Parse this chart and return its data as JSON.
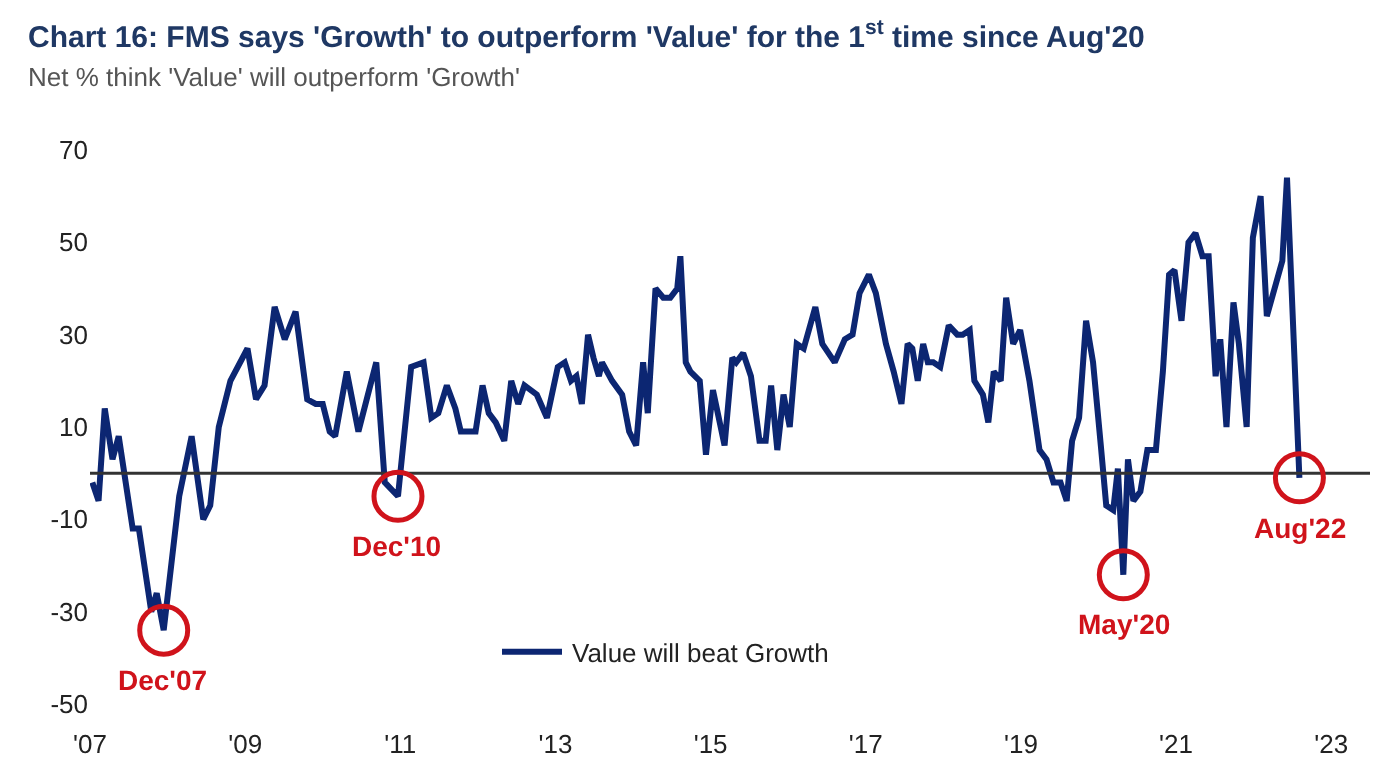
{
  "chart_data": {
    "type": "line",
    "title": "Chart 16: FMS says 'Growth' to outperform 'Value' for the 1$^{st}$ time since Aug'20",
    "subtitle": "Net % think 'Value' will outperform 'Growth'",
    "series": [
      {
        "name": "Value will beat Growth",
        "color": "#0c2672",
        "x": [
          2007.03,
          2007.11,
          2007.19,
          2007.29,
          2007.37,
          2007.55,
          2007.63,
          2007.79,
          2007.86,
          2007.95,
          2008.15,
          2008.31,
          2008.46,
          2008.55,
          2008.66,
          2008.81,
          2009.03,
          2009.14,
          2009.25,
          2009.38,
          2009.51,
          2009.65,
          2009.8,
          2009.91,
          2010.0,
          2010.09,
          2010.16,
          2010.31,
          2010.46,
          2010.69,
          2010.8,
          2010.97,
          2011.14,
          2011.3,
          2011.4,
          2011.49,
          2011.6,
          2011.71,
          2011.78,
          2011.97,
          2012.06,
          2012.14,
          2012.23,
          2012.34,
          2012.43,
          2012.52,
          2012.6,
          2012.76,
          2012.89,
          2013.03,
          2013.12,
          2013.2,
          2013.27,
          2013.34,
          2013.42,
          2013.49,
          2013.56,
          2013.6,
          2013.73,
          2013.86,
          2013.95,
          2014.04,
          2014.13,
          2014.19,
          2014.29,
          2014.39,
          2014.48,
          2014.57,
          2014.61,
          2014.68,
          2014.74,
          2014.86,
          2014.94,
          2015.03,
          2015.18,
          2015.28,
          2015.33,
          2015.42,
          2015.52,
          2015.63,
          2015.71,
          2015.78,
          2015.86,
          2015.94,
          2016.02,
          2016.11,
          2016.2,
          2016.35,
          2016.44,
          2016.6,
          2016.73,
          2016.83,
          2016.92,
          2017.04,
          2017.13,
          2017.26,
          2017.36,
          2017.46,
          2017.54,
          2017.6,
          2017.67,
          2017.74,
          2017.8,
          2017.87,
          2017.96,
          2018.07,
          2018.18,
          2018.25,
          2018.34,
          2018.4,
          2018.51,
          2018.58,
          2018.65,
          2018.74,
          2018.81,
          2018.9,
          2018.99,
          2019.11,
          2019.24,
          2019.33,
          2019.42,
          2019.51,
          2019.59,
          2019.66,
          2019.75,
          2019.84,
          2019.93,
          2020.03,
          2020.1,
          2020.19,
          2020.25,
          2020.32,
          2020.38,
          2020.45,
          2020.54,
          2020.63,
          2020.74,
          2020.83,
          2020.91,
          2020.98,
          2021.07,
          2021.16,
          2021.25,
          2021.34,
          2021.42,
          2021.51,
          2021.57,
          2021.65,
          2021.74,
          2021.81,
          2021.91,
          2021.99,
          2022.09,
          2022.17,
          2022.37,
          2022.43,
          2022.59
        ],
        "values": [
          -2,
          -6,
          14,
          3,
          8,
          -12,
          -12,
          -30,
          -26,
          -34,
          -5,
          8,
          -10,
          -7,
          10,
          20,
          27,
          16,
          19,
          36,
          29,
          35,
          16,
          15,
          15,
          9,
          8,
          22,
          9,
          24,
          -2,
          -5,
          23,
          24,
          12,
          13,
          19,
          14,
          9,
          9,
          19,
          13,
          11,
          7,
          20,
          15,
          19,
          17,
          12,
          23,
          24,
          20,
          21,
          15,
          30,
          25,
          21,
          24,
          20,
          17,
          9,
          6,
          24,
          13,
          40,
          38,
          38,
          40,
          47,
          24,
          22,
          20,
          4,
          18,
          6,
          25,
          24,
          26,
          21,
          7,
          7,
          19,
          5,
          17,
          10,
          28,
          27,
          36,
          28,
          24,
          29,
          30,
          39,
          43,
          39,
          28,
          22,
          15,
          28,
          27,
          20,
          28,
          24,
          24,
          23,
          32,
          30,
          30,
          31,
          20,
          17,
          11,
          22,
          20,
          38,
          28,
          31,
          20,
          5,
          3,
          -2,
          -2,
          -6,
          7,
          12,
          33,
          24,
          6,
          -7,
          -8,
          1,
          -22,
          3,
          -6,
          -4,
          5,
          5,
          22,
          43,
          44,
          33,
          50,
          52,
          47,
          47,
          21,
          29,
          10,
          37,
          28,
          10,
          51,
          60,
          34,
          46,
          64,
          -1
        ]
      }
    ],
    "xlim": [
      2007,
      2023.5
    ],
    "xticks": [
      {
        "value": 2007,
        "label": "'07"
      },
      {
        "value": 2009,
        "label": "'09"
      },
      {
        "value": 2011,
        "label": "'11"
      },
      {
        "value": 2013,
        "label": "'13"
      },
      {
        "value": 2015,
        "label": "'15"
      },
      {
        "value": 2017,
        "label": "'17"
      },
      {
        "value": 2019,
        "label": "'19"
      },
      {
        "value": 2021,
        "label": "'21"
      },
      {
        "value": 2023,
        "label": "'23"
      }
    ],
    "ylim": [
      -50,
      70
    ],
    "yticks": [
      70,
      50,
      30,
      10,
      -10,
      -30,
      -50
    ],
    "ref_lines": [
      {
        "axis": "y",
        "value": 0,
        "color": "#333333"
      }
    ],
    "annotations": [
      {
        "text": "Dec'07",
        "x": 2007.95,
        "y": -34
      },
      {
        "text": "Dec'10",
        "x": 2010.97,
        "y": -5
      },
      {
        "text": "May'20",
        "x": 2020.32,
        "y": -22
      },
      {
        "text": "Aug'22",
        "x": 2022.59,
        "y": -1
      }
    ],
    "legend": "bottom",
    "marker": "none",
    "line_style": "solid"
  }
}
